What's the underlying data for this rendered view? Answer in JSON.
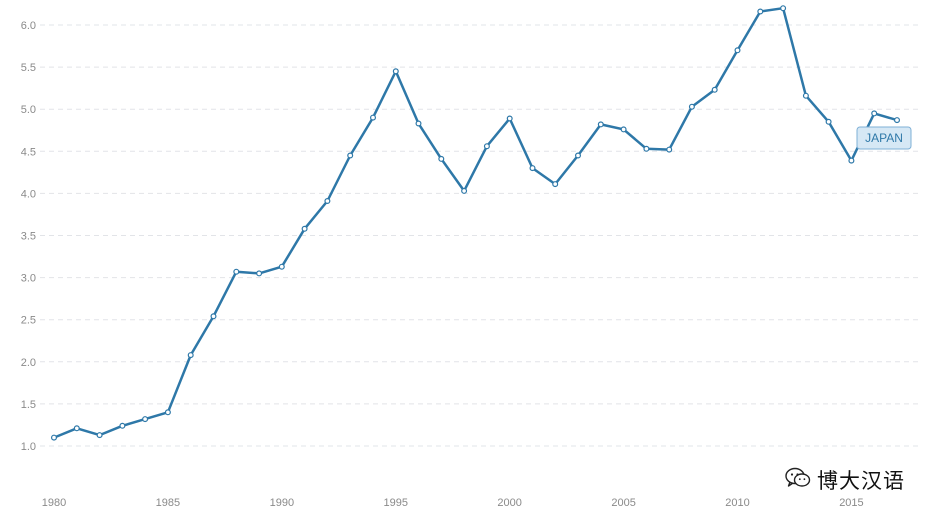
{
  "chart_data": {
    "type": "line",
    "title": "",
    "xlabel": "",
    "ylabel": "",
    "x": [
      1980,
      1981,
      1982,
      1983,
      1984,
      1985,
      1986,
      1987,
      1988,
      1989,
      1990,
      1991,
      1992,
      1993,
      1994,
      1995,
      1996,
      1997,
      1998,
      1999,
      2000,
      2001,
      2002,
      2003,
      2004,
      2005,
      2006,
      2007,
      2008,
      2009,
      2010,
      2011,
      2012,
      2013,
      2014,
      2015,
      2016,
      2017
    ],
    "series": [
      {
        "name": "JAPAN",
        "color": "#2e78a8",
        "values": [
          1.1,
          1.21,
          1.13,
          1.24,
          1.32,
          1.4,
          2.08,
          2.54,
          3.07,
          3.05,
          3.13,
          3.58,
          3.91,
          4.45,
          4.9,
          5.45,
          4.83,
          4.41,
          4.03,
          4.56,
          4.89,
          4.3,
          4.11,
          4.45,
          4.82,
          4.76,
          4.53,
          4.52,
          5.03,
          5.23,
          5.7,
          6.16,
          6.2,
          5.16,
          4.85,
          4.39,
          4.95,
          4.87
        ]
      }
    ],
    "ylim": [
      1.0,
      6.0
    ],
    "yticks": [
      "1.0",
      "1.5",
      "2.0",
      "2.5",
      "3.0",
      "3.5",
      "4.0",
      "4.5",
      "5.0",
      "5.5",
      "6.0"
    ],
    "xticks": [
      "1980",
      "1985",
      "1990",
      "1995",
      "2000",
      "2005",
      "2010",
      "2015"
    ],
    "grid": true,
    "series_label_placement": "end-of-line",
    "label_box_fill": "#d6e8f5",
    "label_box_stroke": "#7fb0d6"
  },
  "watermark": {
    "text": "博大汉语",
    "icon": "wechat-icon"
  }
}
